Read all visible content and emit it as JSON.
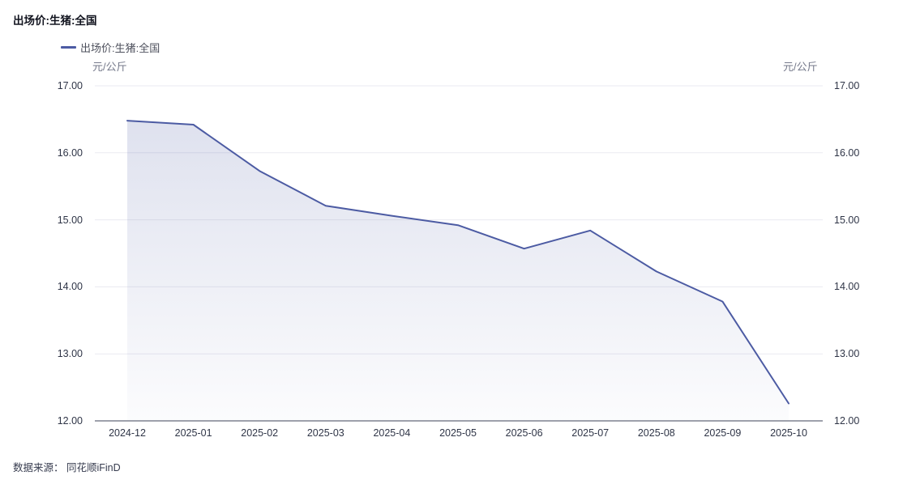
{
  "header": {
    "title": "出场价:生猪:全国"
  },
  "legend": {
    "items": [
      {
        "label": "出场价:生猪:全国",
        "color": "#4c5ba3"
      }
    ]
  },
  "axes": {
    "left_unit": "元/公斤",
    "right_unit": "元/公斤"
  },
  "source": {
    "label": "数据来源： 同花顺iFinD"
  },
  "chart_data": {
    "type": "area",
    "title": "出场价:生猪:全国",
    "categories": [
      "2024-12",
      "2025-01",
      "2025-02",
      "2025-03",
      "2025-04",
      "2025-05",
      "2025-06",
      "2025-07",
      "2025-08",
      "2025-09",
      "2025-10"
    ],
    "series": [
      {
        "name": "出场价:生猪:全国",
        "values": [
          16.48,
          16.42,
          15.73,
          15.21,
          15.06,
          14.92,
          14.57,
          14.84,
          14.23,
          13.78,
          12.26
        ]
      }
    ],
    "xlabel": "",
    "ylabel": "元/公斤",
    "ylim": [
      12,
      17
    ],
    "yticks": [
      "17.00",
      "16.00",
      "15.00",
      "14.00",
      "13.00",
      "12.00"
    ],
    "grid": true,
    "legend_position": "top-left",
    "line_color": "#4c5ba3",
    "area_top_color": "rgba(76,91,163,0.18)",
    "area_bottom_color": "rgba(76,91,163,0.02)",
    "gridline_color": "#eaeaf1",
    "axisline_color": "#3d4358"
  }
}
